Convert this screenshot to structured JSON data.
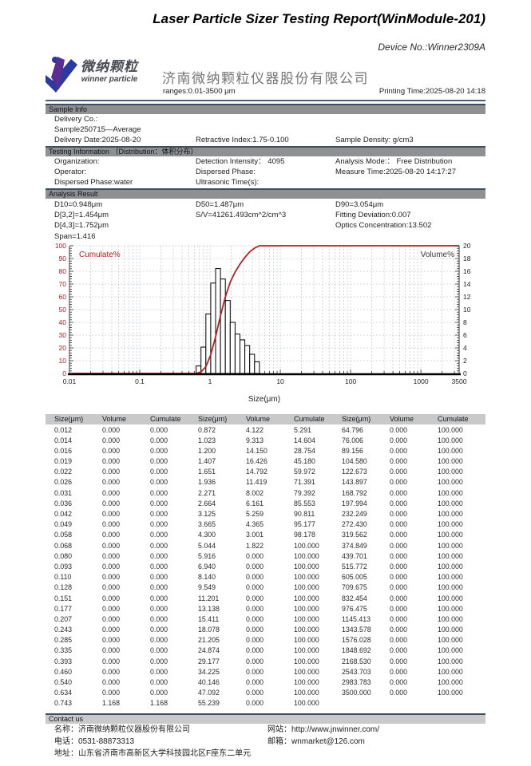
{
  "header": {
    "title": "Laser Particle Sizer Testing Report(WinModule-201)",
    "device_no": "Device No.:Winner2309A",
    "company_name": "济南微纳颗粒仪器股份有限公司",
    "ranges": "ranges:0.01-3500 μm",
    "printing_time": "Printing Time:2025-08-20 14:18"
  },
  "logo": {
    "cn": "微纳颗粒",
    "en": "winner particle",
    "purple": "#5b2d90",
    "blue": "#2b3a9e"
  },
  "sections": {
    "sample_info": {
      "header": "Sample Info",
      "rows": [
        [
          "Delivery Co.:",
          "",
          ""
        ],
        [
          "Sample250715—Average",
          "",
          ""
        ],
        [
          "Delivery Date:2025-08-20",
          "Retractive Index:1.75-0.100",
          "Sample Density: g/cm3"
        ]
      ]
    },
    "testing_info": {
      "header": "Testing Information （Distribution：体积分布）",
      "rows": [
        [
          "Organization:",
          "Detection Intensity： 4095",
          "Analysis Mode:： Free Distribution"
        ],
        [
          "Operator:",
          "Dispersed Phase:",
          "Measure Time:2025-08-20 14:17:27"
        ],
        [
          "Dispersed Phase:water",
          "Ultrasonic Time(s):",
          ""
        ]
      ]
    },
    "analysis_result": {
      "header": "Analysis Result",
      "rows": [
        [
          "D10=0.948μm",
          "D50=1.487μm",
          "D90=3.054μm"
        ],
        [
          "D[3,2]=1.454μm",
          "S/V=41261.493cm^2/cm^3",
          "Fitting Deviation:0.007"
        ],
        [
          "D[4,3]=1.752μm",
          "",
          "Optics Concentration:13.502"
        ],
        [
          "Span=1.416",
          "",
          ""
        ]
      ]
    },
    "contact": {
      "header": "Contact us",
      "rows": [
        [
          "名称：济南微纳颗粒仪器股份有限公司",
          "网站：http://www.jnwinner.com/"
        ],
        [
          "电话：0531-88873313",
          "邮箱：wnmarket@126.com"
        ],
        [
          "地址：山东省济南市高新区大学科技园北区F座东二单元",
          ""
        ]
      ]
    }
  },
  "table": {
    "headers": [
      "Size(μm)",
      "Volume",
      "Cumulate"
    ]
  },
  "chart_data": {
    "type": "histogram_with_cumulative_line",
    "title": "",
    "xlabel": "Size(μm)",
    "x_scale": "log",
    "xlim": [
      0.01,
      3500
    ],
    "x_tick_labels": [
      "0.01",
      "0.1",
      "1",
      "10",
      "100",
      "1000",
      "3500"
    ],
    "x_tick_values": [
      0.01,
      0.1,
      1,
      10,
      100,
      1000,
      3500
    ],
    "left_axis": {
      "label": "Cumulate%",
      "lim": [
        0,
        100
      ],
      "step": 10,
      "color": "#b22222"
    },
    "right_axis": {
      "label": "Volume%",
      "lim": [
        0,
        20
      ],
      "step": 2,
      "color": "#3a3a3a"
    },
    "grid": "dashed",
    "note": "volume histogram on right axis (bins between consecutive sizes); cumulate line on left axis",
    "sizes": [
      "0.012",
      "0.014",
      "0.016",
      "0.019",
      "0.022",
      "0.026",
      "0.031",
      "0.036",
      "0.042",
      "0.049",
      "0.058",
      "0.068",
      "0.080",
      "0.093",
      "0.110",
      "0.128",
      "0.151",
      "0.177",
      "0.207",
      "0.243",
      "0.285",
      "0.335",
      "0.393",
      "0.460",
      "0.540",
      "0.634",
      "0.743",
      "0.872",
      "1.023",
      "1.200",
      "1.407",
      "1.651",
      "1.936",
      "2.271",
      "2.664",
      "3.125",
      "3.665",
      "4.300",
      "5.044",
      "5.916",
      "6.940",
      "8.140",
      "9.549",
      "11.201",
      "13.138",
      "15.411",
      "18.078",
      "21.205",
      "24.874",
      "29.177",
      "34.225",
      "40.146",
      "47.092",
      "55.239",
      "64.796",
      "76.006",
      "89.156",
      "104.580",
      "122.673",
      "143.897",
      "168.792",
      "197.994",
      "232.249",
      "272.430",
      "319.562",
      "374.849",
      "439.701",
      "515.772",
      "605.005",
      "709.675",
      "832.454",
      "976.475",
      "1145.413",
      "1343.578",
      "1576.028",
      "1848.692",
      "2168.530",
      "2543.703",
      "2983.783",
      "3500.000"
    ],
    "volume": [
      "0.000",
      "0.000",
      "0.000",
      "0.000",
      "0.000",
      "0.000",
      "0.000",
      "0.000",
      "0.000",
      "0.000",
      "0.000",
      "0.000",
      "0.000",
      "0.000",
      "0.000",
      "0.000",
      "0.000",
      "0.000",
      "0.000",
      "0.000",
      "0.000",
      "0.000",
      "0.000",
      "0.000",
      "0.000",
      "0.000",
      "1.168",
      "4.122",
      "9.313",
      "14.150",
      "16.426",
      "14.792",
      "11.419",
      "8.002",
      "6.161",
      "5.259",
      "4.365",
      "3.001",
      "1.822",
      "0.000",
      "0.000",
      "0.000",
      "0.000",
      "0.000",
      "0.000",
      "0.000",
      "0.000",
      "0.000",
      "0.000",
      "0.000",
      "0.000",
      "0.000",
      "0.000",
      "0.000",
      "0.000",
      "0.000",
      "0.000",
      "0.000",
      "0.000",
      "0.000",
      "0.000",
      "0.000",
      "0.000",
      "0.000",
      "0.000",
      "0.000",
      "0.000",
      "0.000",
      "0.000",
      "0.000",
      "0.000",
      "0.000",
      "0.000",
      "0.000",
      "0.000",
      "0.000",
      "0.000",
      "0.000",
      "0.000",
      "0.000"
    ],
    "cumulate": [
      "0.000",
      "0.000",
      "0.000",
      "0.000",
      "0.000",
      "0.000",
      "0.000",
      "0.000",
      "0.000",
      "0.000",
      "0.000",
      "0.000",
      "0.000",
      "0.000",
      "0.000",
      "0.000",
      "0.000",
      "0.000",
      "0.000",
      "0.000",
      "0.000",
      "0.000",
      "0.000",
      "0.000",
      "0.000",
      "0.000",
      "1.168",
      "5.291",
      "14.604",
      "28.754",
      "45.180",
      "59.972",
      "71.391",
      "79.392",
      "85.553",
      "90.811",
      "95.177",
      "98.178",
      "100.000",
      "100.000",
      "100.000",
      "100.000",
      "100.000",
      "100.000",
      "100.000",
      "100.000",
      "100.000",
      "100.000",
      "100.000",
      "100.000",
      "100.000",
      "100.000",
      "100.000",
      "100.000",
      "100.000",
      "100.000",
      "100.000",
      "100.000",
      "100.000",
      "100.000",
      "100.000",
      "100.000",
      "100.000",
      "100.000",
      "100.000",
      "100.000",
      "100.000",
      "100.000",
      "100.000",
      "100.000",
      "100.000",
      "100.000",
      "100.000",
      "100.000",
      "100.000",
      "100.000",
      "100.000",
      "100.000",
      "100.000",
      "100.000"
    ]
  }
}
